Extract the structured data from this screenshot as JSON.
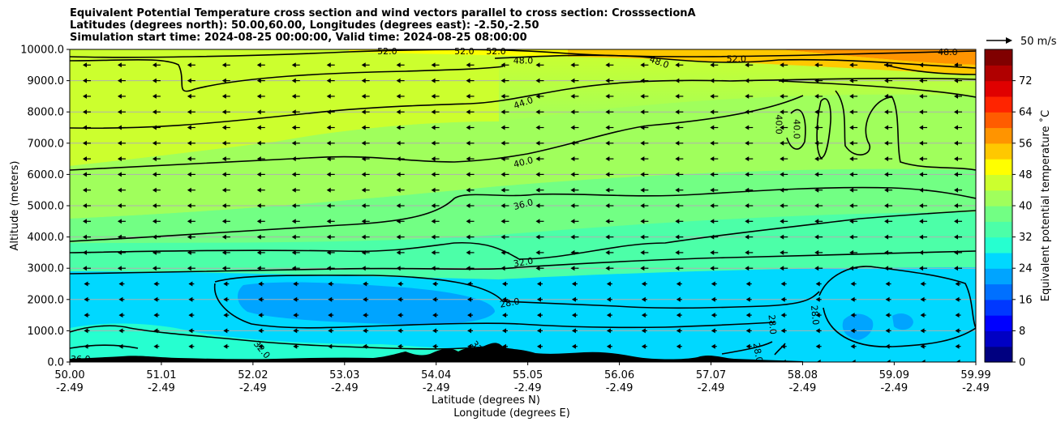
{
  "chart_data": {
    "type": "heatmap",
    "title_lines": [
      "Equivalent Potential Temperature cross section and wind vectors parallel to cross section: CrosssectionA",
      "Latitudes (degrees north): 50.00,60.00, Longitudes (degrees east): -2.50,-2.50",
      "Simulation start time: 2024-08-25 00:00:00, Valid time: 2024-08-25 08:00:00"
    ],
    "ylabel": "Altitude (meters)",
    "xlabel_line1": "Latitude (degrees N)",
    "xlabel_line2": "Longitude (degrees E)",
    "ylim": [
      0,
      10000
    ],
    "xlim": [
      50.0,
      59.99
    ],
    "y_ticks": [
      {
        "value": 0,
        "label": "0.0"
      },
      {
        "value": 1000,
        "label": "1000.0"
      },
      {
        "value": 2000,
        "label": "2000.0"
      },
      {
        "value": 3000,
        "label": "3000.0"
      },
      {
        "value": 4000,
        "label": "4000.0"
      },
      {
        "value": 5000,
        "label": "5000.0"
      },
      {
        "value": 6000,
        "label": "6000.0"
      },
      {
        "value": 7000,
        "label": "7000.0"
      },
      {
        "value": 8000,
        "label": "8000.0"
      },
      {
        "value": 9000,
        "label": "9000.0"
      },
      {
        "value": 10000,
        "label": "10000.0"
      }
    ],
    "x_ticks": [
      {
        "value": 50.0,
        "lat": "50.00",
        "lon": "-2.49"
      },
      {
        "value": 51.01,
        "lat": "51.01",
        "lon": "-2.49"
      },
      {
        "value": 52.02,
        "lat": "52.02",
        "lon": "-2.49"
      },
      {
        "value": 53.03,
        "lat": "53.03",
        "lon": "-2.49"
      },
      {
        "value": 54.04,
        "lat": "54.04",
        "lon": "-2.49"
      },
      {
        "value": 55.05,
        "lat": "55.05",
        "lon": "-2.49"
      },
      {
        "value": 56.06,
        "lat": "56.06",
        "lon": "-2.49"
      },
      {
        "value": 57.07,
        "lat": "57.07",
        "lon": "-2.49"
      },
      {
        "value": 58.08,
        "lat": "58.08",
        "lon": "-2.49"
      },
      {
        "value": 59.09,
        "lat": "59.09",
        "lon": "-2.49"
      },
      {
        "value": 59.99,
        "lat": "59.99",
        "lon": "-2.49"
      }
    ],
    "grid": "horizontal",
    "colorbar": {
      "label": "Equivalent potential temperature ˚C",
      "min": 0,
      "max": 80,
      "step": 2,
      "ticks": [
        "0",
        "8",
        "16",
        "24",
        "32",
        "40",
        "48",
        "56",
        "64",
        "72"
      ],
      "colors": [
        "#000080",
        "#0000c4",
        "#0000ff",
        "#0038ff",
        "#0070ff",
        "#00a4ff",
        "#00d8ff",
        "#26ffd0",
        "#4cffa8",
        "#72ff84",
        "#a0ff5c",
        "#ccff2e",
        "#ffff00",
        "#ffc800",
        "#ff9400",
        "#ff5c00",
        "#ff2400",
        "#e00000",
        "#b00000",
        "#800000"
      ]
    },
    "quiver_key": {
      "label": "50 m/s",
      "speed": 50
    },
    "wind": {
      "direction": "westward (towards lower latitude)",
      "typical_speed_ms": 8
    },
    "contour_levels": [
      28,
      32,
      36,
      40,
      44,
      48,
      52
    ],
    "contour_labels": [
      {
        "text": "36.0",
        "lat": 50.12,
        "alt": 100,
        "rot": 0
      },
      {
        "text": "32.0",
        "lat": 52.12,
        "alt": 400,
        "rot": 50
      },
      {
        "text": "32.0",
        "lat": 54.52,
        "alt": 400,
        "rot": 50
      },
      {
        "text": "28.0",
        "lat": 54.85,
        "alt": 1900,
        "rot": -10
      },
      {
        "text": "32.0",
        "lat": 55.0,
        "alt": 3200,
        "rot": -10
      },
      {
        "text": "36.0",
        "lat": 55.0,
        "alt": 5050,
        "rot": -15
      },
      {
        "text": "40.0",
        "lat": 55.0,
        "alt": 6400,
        "rot": -15
      },
      {
        "text": "44.0",
        "lat": 55.0,
        "alt": 8300,
        "rot": -20
      },
      {
        "text": "48.0",
        "lat": 55.0,
        "alt": 9650,
        "rot": 0
      },
      {
        "text": "52.0",
        "lat": 53.5,
        "alt": 9950,
        "rot": 0
      },
      {
        "text": "52.0",
        "lat": 54.35,
        "alt": 9950,
        "rot": 0
      },
      {
        "text": "52.0",
        "lat": 54.7,
        "alt": 9950,
        "rot": 0
      },
      {
        "text": "48.0",
        "lat": 56.5,
        "alt": 9600,
        "rot": 20
      },
      {
        "text": "52.0",
        "lat": 57.35,
        "alt": 9700,
        "rot": 0
      },
      {
        "text": "48.0",
        "lat": 59.68,
        "alt": 9920,
        "rot": 0
      },
      {
        "text": "40.0",
        "lat": 57.82,
        "alt": 7600,
        "rot": 90
      },
      {
        "text": "40.0",
        "lat": 58.02,
        "alt": 7450,
        "rot": 90
      },
      {
        "text": "28.0",
        "lat": 57.75,
        "alt": 1200,
        "rot": 85
      },
      {
        "text": "28.0",
        "lat": 58.22,
        "alt": 1500,
        "rot": 85
      },
      {
        "text": "28.0",
        "lat": 57.59,
        "alt": 300,
        "rot": 80
      },
      {
        "text": "28.0",
        "lat": 56.0,
        "alt": 120,
        "rot": 0
      }
    ],
    "field_regions": [
      {
        "name": "yellow-upper-left",
        "theta": 48
      },
      {
        "name": "light-green-mid",
        "theta": 42
      },
      {
        "name": "green",
        "theta": 38
      },
      {
        "name": "aqua-green",
        "theta": 33
      },
      {
        "name": "cyan-low",
        "theta": 28
      },
      {
        "name": "blue-cyan-core",
        "theta": 25
      },
      {
        "name": "orange-top-right",
        "theta": 58
      }
    ]
  }
}
